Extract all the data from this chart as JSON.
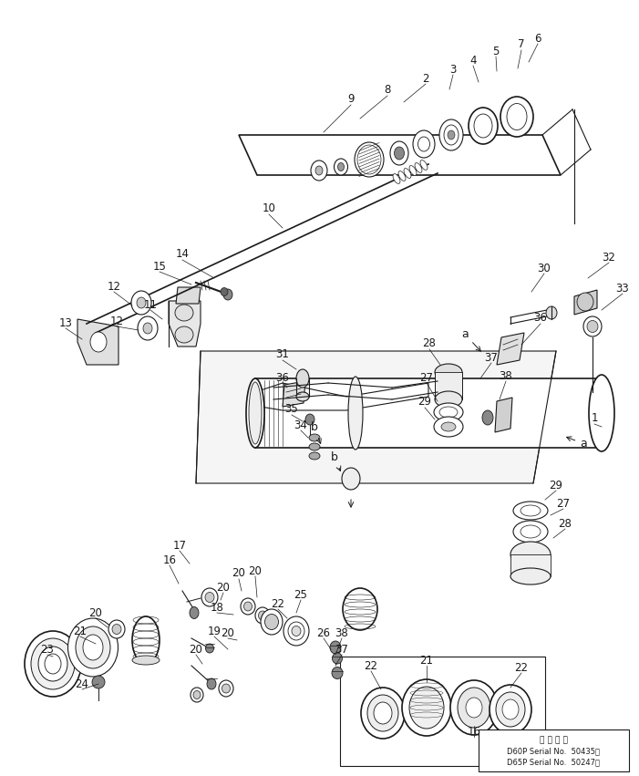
{
  "bg": "#ffffff",
  "lc": "#1a1a1a",
  "fig_w": 7.01,
  "fig_h": 8.51,
  "dpi": 100,
  "bottom_text": [
    "通 用 号 機",
    "D60P Serial No.  50435～",
    "D65P Serial No.  50247～"
  ]
}
